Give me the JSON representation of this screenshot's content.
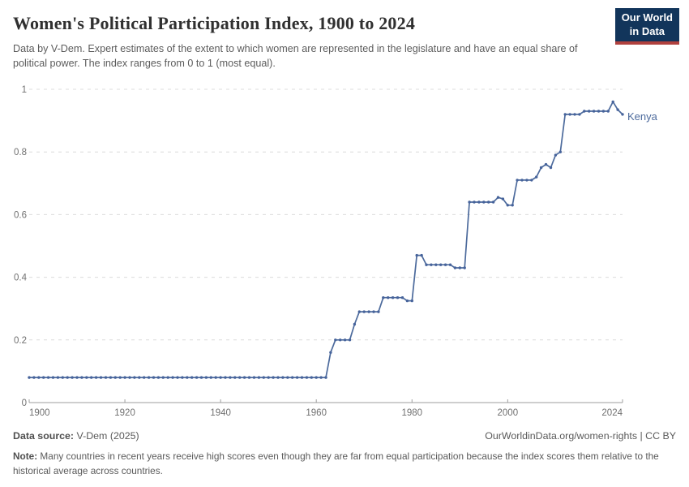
{
  "header": {
    "title": "Women's Political Participation Index, 1900 to 2024",
    "subtitle": "Data by V-Dem. Expert estimates of the extent to which women are represented in the legislature and have an equal share of political power. The index ranges from 0 to 1 (most equal).",
    "logo": {
      "line1": "Our World",
      "line2": "in Data",
      "bg_color": "#12355b",
      "accent_color": "#b0413e"
    }
  },
  "chart_data": {
    "type": "line",
    "title": "Women's Political Participation Index, 1900 to 2024",
    "xlabel": "",
    "ylabel": "",
    "x_start": 1900,
    "x_end": 2024,
    "x_ticks": [
      1900,
      1920,
      1940,
      1960,
      1980,
      2000,
      2024
    ],
    "y_ticks": [
      0,
      0.2,
      0.4,
      0.6,
      0.8,
      1
    ],
    "ylim": [
      0,
      1
    ],
    "grid": "horizontal-dashed",
    "legend_position": "end-of-line-label",
    "end_label": "Kenya",
    "line_color": "#4c6a9c",
    "dot_color": "#46639b",
    "grid_color": "#dcdcdc",
    "axis_color": "#9e9e9e",
    "tick_label_color": "#707070",
    "series": [
      {
        "name": "Kenya",
        "values": [
          0.08,
          0.08,
          0.08,
          0.08,
          0.08,
          0.08,
          0.08,
          0.08,
          0.08,
          0.08,
          0.08,
          0.08,
          0.08,
          0.08,
          0.08,
          0.08,
          0.08,
          0.08,
          0.08,
          0.08,
          0.08,
          0.08,
          0.08,
          0.08,
          0.08,
          0.08,
          0.08,
          0.08,
          0.08,
          0.08,
          0.08,
          0.08,
          0.08,
          0.08,
          0.08,
          0.08,
          0.08,
          0.08,
          0.08,
          0.08,
          0.08,
          0.08,
          0.08,
          0.08,
          0.08,
          0.08,
          0.08,
          0.08,
          0.08,
          0.08,
          0.08,
          0.08,
          0.08,
          0.08,
          0.08,
          0.08,
          0.08,
          0.08,
          0.08,
          0.08,
          0.08,
          0.08,
          0.08,
          0.16,
          0.2,
          0.2,
          0.2,
          0.2,
          0.25,
          0.29,
          0.29,
          0.29,
          0.29,
          0.29,
          0.335,
          0.335,
          0.335,
          0.335,
          0.335,
          0.325,
          0.325,
          0.47,
          0.47,
          0.44,
          0.44,
          0.44,
          0.44,
          0.44,
          0.44,
          0.43,
          0.43,
          0.43,
          0.64,
          0.64,
          0.64,
          0.64,
          0.64,
          0.64,
          0.655,
          0.65,
          0.63,
          0.63,
          0.71,
          0.71,
          0.71,
          0.71,
          0.72,
          0.75,
          0.76,
          0.75,
          0.79,
          0.8,
          0.92,
          0.92,
          0.92,
          0.92,
          0.93,
          0.93,
          0.93,
          0.93,
          0.93,
          0.93,
          0.96,
          0.935,
          0.92
        ]
      }
    ]
  },
  "footer": {
    "source_label": "Data source:",
    "source_value": " V-Dem (2025)",
    "link": "OurWorldinData.org/women-rights | CC BY",
    "note_label": "Note:",
    "note_value": " Many countries in recent years receive high scores even though they are far from equal participation because the index scores them relative to the historical average across countries."
  }
}
